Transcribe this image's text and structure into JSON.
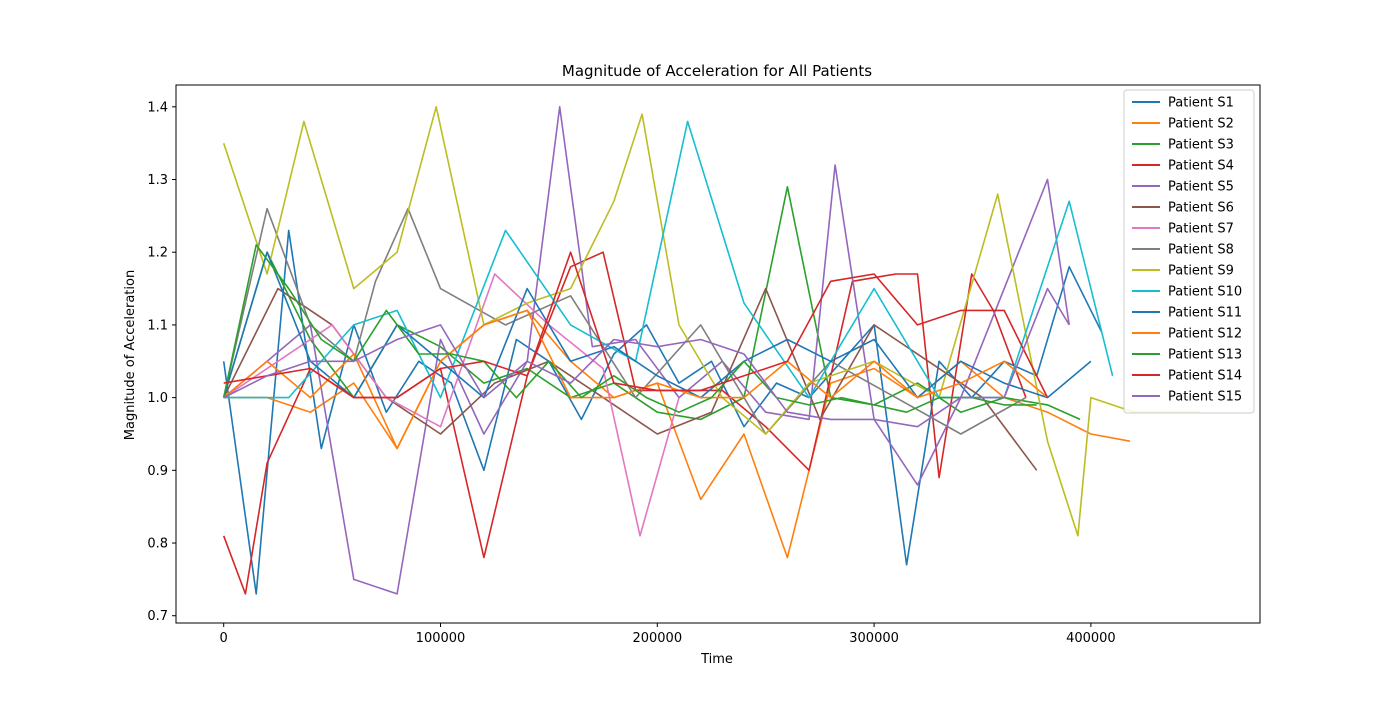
{
  "chart_data": {
    "type": "line",
    "title": "Magnitude of Acceleration for All Patients",
    "xlabel": "Time",
    "ylabel": "Magnitude of Acceleration",
    "xlim": [
      -22000,
      478000
    ],
    "ylim": [
      0.69,
      1.43
    ],
    "xticks": [
      0,
      100000,
      200000,
      300000,
      400000
    ],
    "xtick_labels": [
      "0",
      "100000",
      "200000",
      "300000",
      "400000"
    ],
    "yticks": [
      0.7,
      0.8,
      0.9,
      1.0,
      1.1,
      1.2,
      1.3,
      1.4
    ],
    "ytick_labels": [
      "0.7",
      "0.8",
      "0.9",
      "1.0",
      "1.1",
      "1.2",
      "1.3",
      "1.4"
    ],
    "grid": false,
    "legend_position": "top-right",
    "series": [
      {
        "name": "Patient S1",
        "color": "#1f77b4",
        "x": [
          0,
          15000,
          30000,
          45000,
          60000,
          75000,
          90000,
          105000,
          120000,
          135000,
          150000,
          165000,
          180000,
          195000,
          210000,
          225000,
          240000,
          255000,
          270000,
          285000,
          300000,
          315000,
          330000,
          345000,
          360000,
          375000,
          390000,
          405000
        ],
        "y": [
          1.05,
          0.73,
          1.23,
          0.93,
          1.1,
          0.98,
          1.05,
          1.02,
          0.9,
          1.08,
          1.05,
          0.97,
          1.06,
          1.1,
          1.02,
          1.05,
          0.96,
          1.02,
          1.0,
          1.05,
          1.1,
          0.77,
          1.05,
          1.0,
          1.05,
          1.03,
          1.18,
          1.09
        ]
      },
      {
        "name": "Patient S2",
        "color": "#ff7f0e",
        "x": [
          0,
          20000,
          40000,
          60000,
          80000,
          100000,
          120000,
          140000,
          160000,
          180000,
          200000,
          220000,
          240000,
          260000,
          280000,
          300000,
          320000,
          340000,
          360000,
          380000,
          400000,
          418000
        ],
        "y": [
          1.0,
          1.0,
          0.98,
          1.02,
          0.93,
          1.05,
          1.1,
          1.12,
          1.05,
          1.0,
          1.02,
          0.86,
          0.95,
          0.78,
          1.02,
          1.04,
          1.0,
          1.05,
          1.0,
          0.98,
          0.95,
          0.94
        ]
      },
      {
        "name": "Patient S3",
        "color": "#2ca02c",
        "x": [
          0,
          20000,
          40000,
          60000,
          80000,
          100000,
          120000,
          140000,
          160000,
          180000,
          200000,
          220000,
          240000,
          260000,
          280000,
          300000,
          320000,
          340000,
          360000,
          380000,
          395000
        ],
        "y": [
          1.0,
          1.2,
          1.08,
          1.0,
          1.1,
          1.07,
          1.02,
          1.04,
          1.0,
          1.02,
          0.98,
          0.97,
          1.0,
          1.29,
          1.0,
          0.99,
          1.02,
          0.98,
          1.0,
          0.99,
          0.97
        ]
      },
      {
        "name": "Patient S4",
        "color": "#d62728",
        "x": [
          0,
          10000,
          20000,
          40000,
          60000,
          80000,
          100000,
          120000,
          140000,
          160000,
          175000,
          190000,
          210000,
          230000,
          250000,
          270000,
          290000,
          310000,
          320000,
          330000,
          345000,
          355000,
          370000
        ],
        "y": [
          0.81,
          0.73,
          0.91,
          1.04,
          1.0,
          1.0,
          1.04,
          0.78,
          1.03,
          1.18,
          1.2,
          1.01,
          1.01,
          1.01,
          0.96,
          0.9,
          1.16,
          1.17,
          1.17,
          0.89,
          1.17,
          1.12,
          1.0
        ]
      },
      {
        "name": "Patient S5",
        "color": "#9467bd",
        "x": [
          0,
          20000,
          40000,
          60000,
          80000,
          100000,
          120000,
          140000,
          155000,
          170000,
          190000,
          210000,
          230000,
          250000,
          270000,
          282000,
          300000,
          320000,
          340000,
          360000,
          380000,
          390000
        ],
        "y": [
          1.0,
          1.05,
          1.1,
          0.75,
          0.73,
          1.08,
          0.95,
          1.05,
          1.4,
          1.07,
          1.08,
          1.0,
          1.05,
          0.98,
          0.97,
          1.32,
          0.97,
          0.88,
          1.0,
          1.15,
          1.3,
          1.1
        ]
      },
      {
        "name": "Patient S6",
        "color": "#8c564b",
        "x": [
          0,
          25000,
          50000,
          75000,
          100000,
          125000,
          150000,
          175000,
          200000,
          225000,
          250000,
          275000,
          300000,
          325000,
          350000,
          375000
        ],
        "y": [
          1.0,
          1.15,
          1.1,
          1.0,
          0.95,
          1.02,
          1.05,
          1.0,
          0.95,
          0.98,
          1.15,
          0.97,
          1.1,
          1.05,
          1.0,
          0.9
        ]
      },
      {
        "name": "Patient S7",
        "color": "#e377c2",
        "x": [
          0,
          25000,
          50000,
          75000,
          100000,
          125000,
          150000,
          175000,
          192000,
          210000
        ],
        "y": [
          1.0,
          1.05,
          1.1,
          1.0,
          0.96,
          1.17,
          1.1,
          1.04,
          0.81,
          1.0
        ]
      },
      {
        "name": "Patient S8",
        "color": "#7f7f7f",
        "x": [
          0,
          20000,
          40000,
          60000,
          70000,
          85000,
          100000,
          130000,
          160000,
          190000,
          220000,
          250000,
          280000,
          310000,
          340000,
          370000
        ],
        "y": [
          1.0,
          1.26,
          1.1,
          1.05,
          1.16,
          1.26,
          1.15,
          1.1,
          1.14,
          1.0,
          1.1,
          0.95,
          1.05,
          1.0,
          0.95,
          1.0
        ]
      },
      {
        "name": "Patient S9",
        "color": "#bcbd22",
        "x": [
          0,
          20000,
          37000,
          60000,
          80000,
          98000,
          120000,
          140000,
          160000,
          180000,
          193000,
          210000,
          230000,
          250000,
          270000,
          300000,
          330000,
          357000,
          380000,
          394000,
          400000,
          420000,
          440000,
          450000
        ],
        "y": [
          1.35,
          1.17,
          1.38,
          1.15,
          1.2,
          1.4,
          1.1,
          1.13,
          1.15,
          1.27,
          1.39,
          1.1,
          1.0,
          0.95,
          1.02,
          1.05,
          1.0,
          1.28,
          0.94,
          0.81,
          1.0,
          0.98,
          0.98,
          0.98
        ]
      },
      {
        "name": "Patient S10",
        "color": "#17becf",
        "x": [
          0,
          30000,
          60000,
          80000,
          100000,
          130000,
          160000,
          190000,
          214000,
          240000,
          270000,
          300000,
          330000,
          360000,
          390000,
          410000
        ],
        "y": [
          1.0,
          1.0,
          1.1,
          1.12,
          1.0,
          1.23,
          1.1,
          1.05,
          1.38,
          1.13,
          1.0,
          1.15,
          1.0,
          1.0,
          1.27,
          1.03
        ]
      },
      {
        "name": "Patient S11",
        "color": "#1f77b4",
        "x": [
          0,
          20000,
          40000,
          60000,
          80000,
          100000,
          120000,
          140000,
          160000,
          180000,
          200000,
          220000,
          240000,
          260000,
          280000,
          300000,
          320000,
          340000,
          360000,
          380000,
          400000
        ],
        "y": [
          1.0,
          1.2,
          1.05,
          1.0,
          1.1,
          1.05,
          1.0,
          1.15,
          1.05,
          1.07,
          1.03,
          1.0,
          1.05,
          1.08,
          1.05,
          1.08,
          1.0,
          1.05,
          1.02,
          1.0,
          1.05
        ]
      },
      {
        "name": "Patient S12",
        "color": "#ff7f0e",
        "x": [
          0,
          20000,
          40000,
          60000,
          80000,
          100000,
          120000,
          140000,
          160000,
          180000,
          200000,
          220000,
          240000,
          260000,
          280000,
          300000,
          320000,
          340000,
          360000,
          380000
        ],
        "y": [
          1.0,
          1.05,
          1.0,
          1.06,
          0.93,
          1.05,
          1.1,
          1.12,
          1.0,
          1.0,
          1.02,
          1.0,
          1.0,
          1.05,
          1.0,
          1.05,
          1.0,
          1.02,
          1.05,
          1.0
        ]
      },
      {
        "name": "Patient S13",
        "color": "#2ca02c",
        "x": [
          0,
          15000,
          30000,
          45000,
          60000,
          75000,
          90000,
          105000,
          120000,
          135000,
          150000,
          165000,
          180000,
          195000,
          210000,
          225000,
          240000,
          255000,
          270000,
          285000,
          300000,
          315000,
          330000,
          345000,
          360000,
          375000
        ],
        "y": [
          1.0,
          1.21,
          1.15,
          1.08,
          1.05,
          1.12,
          1.06,
          1.06,
          1.05,
          1.0,
          1.05,
          1.0,
          1.03,
          1.0,
          0.98,
          1.0,
          1.05,
          1.0,
          0.99,
          1.0,
          0.99,
          0.98,
          1.0,
          1.0,
          0.99,
          0.99
        ]
      },
      {
        "name": "Patient S14",
        "color": "#d62728",
        "x": [
          0,
          20000,
          40000,
          60000,
          80000,
          100000,
          120000,
          140000,
          160000,
          180000,
          200000,
          220000,
          240000,
          260000,
          280000,
          300000,
          320000,
          340000,
          360000,
          380000
        ],
        "y": [
          1.02,
          1.03,
          1.04,
          1.0,
          1.0,
          1.04,
          1.05,
          1.03,
          1.2,
          1.02,
          1.01,
          1.01,
          1.03,
          1.05,
          1.16,
          1.17,
          1.1,
          1.12,
          1.12,
          1.0
        ]
      },
      {
        "name": "Patient S15",
        "color": "#9467bd",
        "x": [
          0,
          20000,
          40000,
          60000,
          80000,
          100000,
          120000,
          140000,
          160000,
          180000,
          200000,
          220000,
          240000,
          260000,
          280000,
          300000,
          320000,
          340000,
          360000,
          380000,
          390000
        ],
        "y": [
          1.0,
          1.03,
          1.05,
          1.05,
          1.08,
          1.1,
          1.0,
          1.05,
          1.02,
          1.08,
          1.07,
          1.08,
          1.06,
          0.98,
          0.97,
          0.97,
          0.96,
          1.0,
          1.0,
          1.15,
          1.1
        ]
      }
    ]
  }
}
